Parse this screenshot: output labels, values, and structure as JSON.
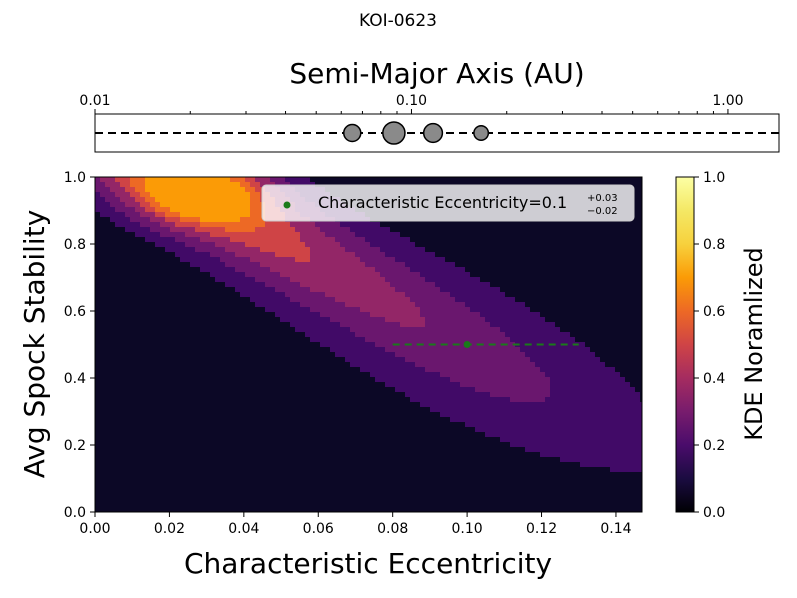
{
  "figure_title": "KOI-0623",
  "chart_data": [
    {
      "type": "scatter",
      "name": "orbit-strip",
      "title": "Semi-Major Axis (AU)",
      "xscale": "log",
      "xlim": [
        0.01,
        1.45
      ],
      "xticks": [
        0.01,
        0.1,
        1.0
      ],
      "xtick_labels": [
        "0.01",
        "0.10",
        "1.00"
      ],
      "planets_au": [
        0.065,
        0.088,
        0.117,
        0.166
      ],
      "planet_sizes": [
        1.0,
        1.3,
        1.1,
        0.85
      ],
      "reference_line": "dashed-horizontal"
    },
    {
      "type": "heatmap",
      "name": "kde-contour",
      "xlabel": "Characteristic Eccentricity",
      "ylabel": "Avg Spock Stability",
      "xlim": [
        0.0,
        0.147
      ],
      "ylim": [
        0.0,
        1.0
      ],
      "xticks": [
        0.0,
        0.02,
        0.04,
        0.06,
        0.08,
        0.1,
        0.12,
        0.14
      ],
      "xtick_labels": [
        "0.00",
        "0.02",
        "0.04",
        "0.06",
        "0.08",
        "0.10",
        "0.12",
        "0.14"
      ],
      "yticks": [
        0.0,
        0.2,
        0.4,
        0.6,
        0.8,
        1.0
      ],
      "ytick_labels": [
        "0.0",
        "0.2",
        "0.4",
        "0.6",
        "0.8",
        "1.0"
      ],
      "colormap": "inferno",
      "levels": [
        0.0,
        0.143,
        0.286,
        0.429,
        0.571,
        0.714,
        0.857,
        1.0
      ],
      "level_colors": [
        "#0c0826",
        "#410a67",
        "#6a176e",
        "#932667",
        "#cf4446",
        "#ed6925",
        "#fb9b06",
        "#f4e865"
      ],
      "kde_peak": {
        "ecc": 0.028,
        "stability": 0.95
      },
      "kde_direction": {
        "d_ecc": 0.09,
        "d_stab": -0.59
      },
      "point_estimate": {
        "ecc": 0.1,
        "stability": 0.5,
        "err_minus": 0.02,
        "err_plus": 0.03
      },
      "marker_color": "#1a7a1a",
      "legend": {
        "text": "Characteristic Eccentricity=0.1",
        "sup": "+0.03",
        "sub": "−0.02",
        "placement": "top-right"
      }
    },
    {
      "type": "colorbar",
      "name": "colorbar",
      "label": "KDE Noramlized",
      "range": [
        0.0,
        1.0
      ],
      "ticks": [
        0.0,
        0.2,
        0.4,
        0.6,
        0.8,
        1.0
      ],
      "tick_labels": [
        "0.0",
        "0.2",
        "0.4",
        "0.6",
        "0.8",
        "1.0"
      ]
    }
  ]
}
